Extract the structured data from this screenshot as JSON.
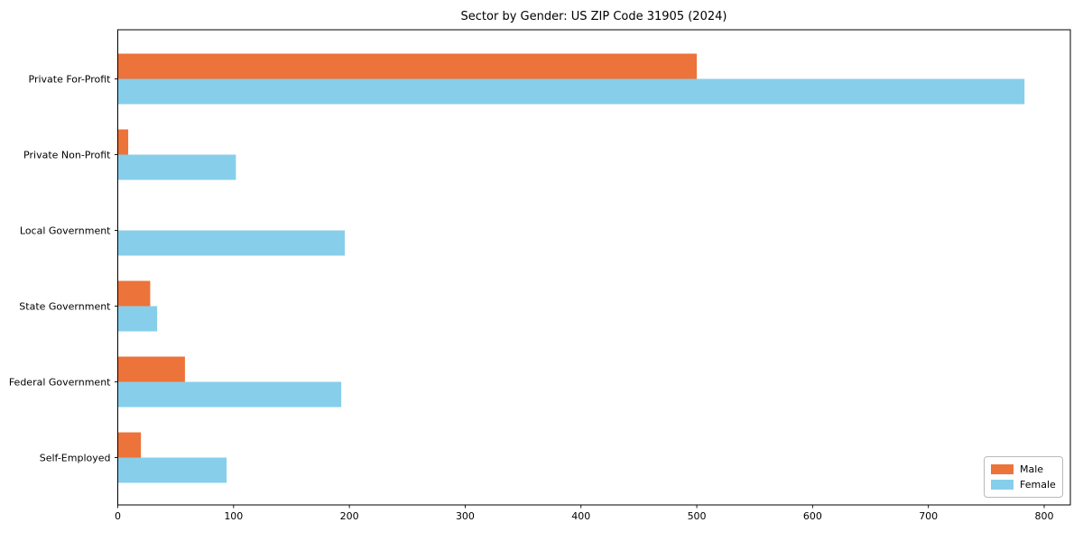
{
  "chart_data": {
    "type": "bar",
    "orientation": "horizontal",
    "title": "Sector by Gender: US ZIP Code 31905 (2024)",
    "categories": [
      "Private For-Profit",
      "Private Non-Profit",
      "Local Government",
      "State Government",
      "Federal Government",
      "Self-Employed"
    ],
    "series": [
      {
        "name": "Male",
        "color": "#ec7339",
        "values": [
          500,
          9,
          0,
          28,
          58,
          20
        ]
      },
      {
        "name": "Female",
        "color": "#87ceeb",
        "values": [
          783,
          102,
          196,
          34,
          193,
          94
        ]
      }
    ],
    "xlabel": "",
    "ylabel": "",
    "xlim": [
      0,
      822
    ],
    "xticks": [
      0,
      100,
      200,
      300,
      400,
      500,
      600,
      700,
      800
    ],
    "grid": false,
    "axis_color": "#000000",
    "legend": {
      "position": "lower right",
      "entries": [
        "Male",
        "Female"
      ]
    }
  }
}
